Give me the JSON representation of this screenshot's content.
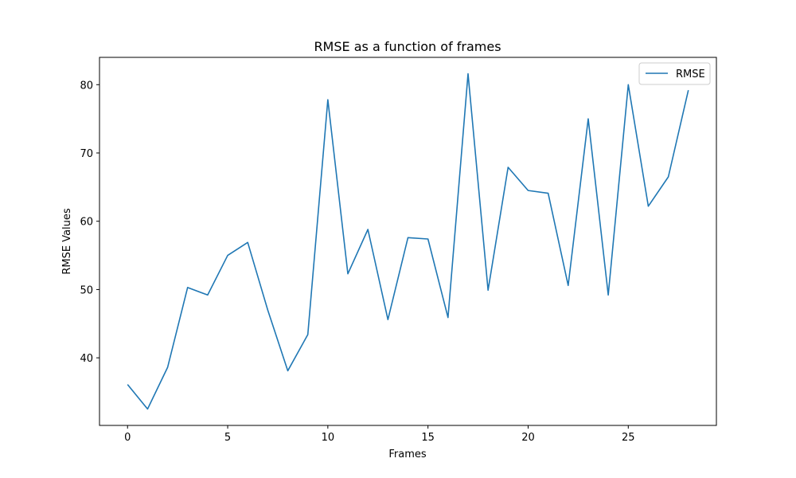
{
  "chart_data": {
    "type": "line",
    "title": "RMSE as a function of frames",
    "xlabel": "Frames",
    "ylabel": "RMSE Values",
    "xlim": [
      -1.4,
      29.4
    ],
    "ylim": [
      30.1,
      84.0
    ],
    "xticks": [
      0,
      5,
      10,
      15,
      20,
      25
    ],
    "yticks": [
      40,
      50,
      60,
      70,
      80
    ],
    "grid": false,
    "legend_position": "top-right",
    "series": [
      {
        "name": "RMSE",
        "color": "#1f77b4",
        "x": [
          0,
          1,
          2,
          3,
          4,
          5,
          6,
          7,
          8,
          9,
          10,
          11,
          12,
          13,
          14,
          15,
          16,
          17,
          18,
          19,
          20,
          21,
          22,
          23,
          24,
          25,
          26,
          27,
          28
        ],
        "y": [
          36.1,
          32.5,
          38.6,
          50.3,
          49.2,
          55.0,
          56.9,
          47.0,
          38.1,
          43.4,
          77.8,
          52.3,
          58.8,
          45.6,
          57.6,
          57.4,
          45.9,
          81.6,
          49.9,
          67.9,
          64.5,
          64.1,
          50.6,
          75.0,
          49.2,
          80.0,
          62.2,
          66.5,
          79.2
        ]
      }
    ]
  }
}
